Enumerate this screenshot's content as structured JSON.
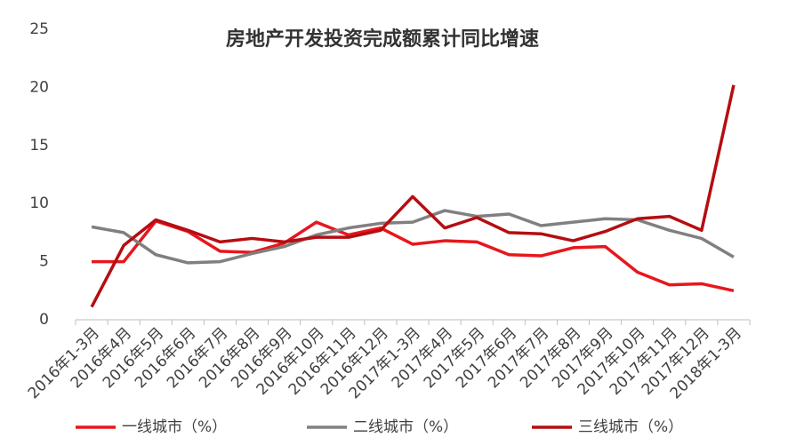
{
  "chart_data": {
    "type": "line",
    "title": "房地产开发投资完成额累计同比增速",
    "categories": [
      "2016年1-3月",
      "2016年4月",
      "2016年5月",
      "2016年6月",
      "2016年7月",
      "2016年8月",
      "2016年9月",
      "2016年10月",
      "2016年11月",
      "2016年12月",
      "2017年1-3月",
      "2017年4月",
      "2017年5月",
      "2017年6月",
      "2017年7月",
      "2017年8月",
      "2017年9月",
      "2017年10月",
      "2017年11月",
      "2017年12月",
      "2018年1-3月"
    ],
    "series": [
      {
        "name": "一线城市（%）",
        "color": "#e8161c",
        "values": [
          5.0,
          5.0,
          8.5,
          7.6,
          5.9,
          5.8,
          6.6,
          8.4,
          7.3,
          7.9,
          6.5,
          6.8,
          6.7,
          5.6,
          5.5,
          6.2,
          6.3,
          4.1,
          3.0,
          3.1,
          2.5
        ]
      },
      {
        "name": "二线城市（%）",
        "color": "#808080",
        "values": [
          8.0,
          7.5,
          5.6,
          4.9,
          5.0,
          5.7,
          6.3,
          7.3,
          7.9,
          8.3,
          8.4,
          9.4,
          8.9,
          9.1,
          8.1,
          8.4,
          8.7,
          8.6,
          7.7,
          7.0,
          5.4
        ]
      },
      {
        "name": "三线城市（%）",
        "color": "#b50d12",
        "values": [
          1.1,
          6.4,
          8.6,
          7.7,
          6.7,
          7.0,
          6.7,
          7.1,
          7.1,
          7.7,
          10.6,
          7.9,
          8.8,
          7.5,
          7.4,
          6.8,
          7.6,
          8.7,
          8.9,
          7.7,
          20.2
        ]
      }
    ],
    "ylim": [
      0,
      25
    ],
    "yticks": [
      0,
      5,
      10,
      15,
      20,
      25
    ],
    "grid": false,
    "legend": "bottom"
  }
}
